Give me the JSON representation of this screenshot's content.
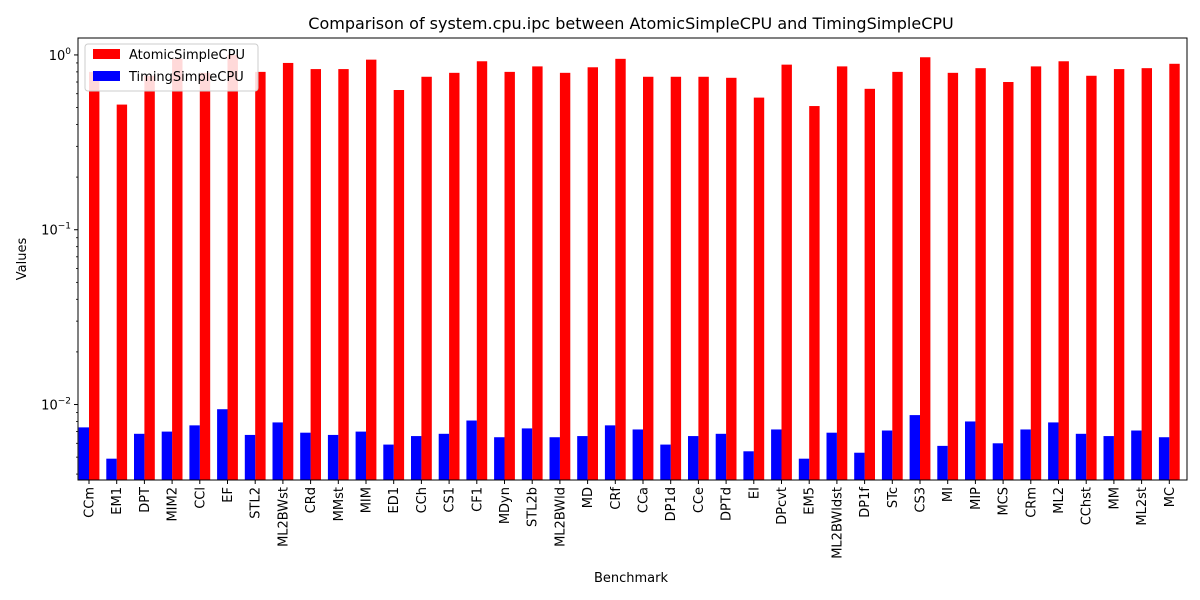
{
  "chart_data": {
    "type": "bar",
    "title": "Comparison of system.cpu.ipc between AtomicSimpleCPU and TimingSimpleCPU",
    "xlabel": "Benchmark",
    "ylabel": "Values",
    "yscale": "log",
    "ylim": [
      0.0037,
      1.25
    ],
    "yticks": [
      {
        "value": 0.01,
        "base": "10",
        "exp": "−2"
      },
      {
        "value": 0.1,
        "base": "10",
        "exp": "−1"
      },
      {
        "value": 1,
        "base": "10",
        "exp": "0"
      }
    ],
    "legend_position": "top-left",
    "grid": false,
    "categories": [
      "CCm",
      "EM1",
      "DPT",
      "MIM2",
      "CCl",
      "EF",
      "STL2",
      "ML2BWst",
      "CRd",
      "MMst",
      "MIM",
      "ED1",
      "CCh",
      "CS1",
      "CF1",
      "MDyn",
      "STL2b",
      "ML2BWld",
      "MD",
      "CRf",
      "CCa",
      "DP1d",
      "CCe",
      "DPTd",
      "EI",
      "DPcvt",
      "EM5",
      "ML2BWldst",
      "DP1f",
      "STc",
      "CS3",
      "MI",
      "MIP",
      "MCS",
      "CRm",
      "ML2",
      "CChst",
      "MM",
      "ML2st",
      "MC"
    ],
    "series": [
      {
        "name": "AtomicSimpleCPU",
        "color": "#ff0000",
        "values": [
          0.8,
          0.52,
          0.76,
          0.95,
          0.79,
          1.0,
          0.8,
          0.9,
          0.83,
          0.83,
          0.94,
          0.63,
          0.75,
          0.79,
          0.92,
          0.8,
          0.86,
          0.79,
          0.85,
          0.95,
          0.75,
          0.75,
          0.75,
          0.74,
          0.57,
          0.88,
          0.51,
          0.86,
          0.64,
          0.8,
          0.97,
          0.79,
          0.84,
          0.7,
          0.86,
          0.92,
          0.76,
          0.83,
          0.84,
          0.89
        ]
      },
      {
        "name": "TimingSimpleCPU",
        "color": "#0000ff",
        "values": [
          0.0074,
          0.0049,
          0.0068,
          0.007,
          0.0076,
          0.0094,
          0.0067,
          0.0079,
          0.0069,
          0.0067,
          0.007,
          0.0059,
          0.0066,
          0.0068,
          0.0081,
          0.0065,
          0.0073,
          0.0065,
          0.0066,
          0.0076,
          0.0072,
          0.0059,
          0.0066,
          0.0068,
          0.0054,
          0.0072,
          0.0049,
          0.0069,
          0.0053,
          0.0071,
          0.0087,
          0.0058,
          0.008,
          0.006,
          0.0072,
          0.0079,
          0.0068,
          0.0066,
          0.0071,
          0.0065
        ]
      }
    ]
  }
}
